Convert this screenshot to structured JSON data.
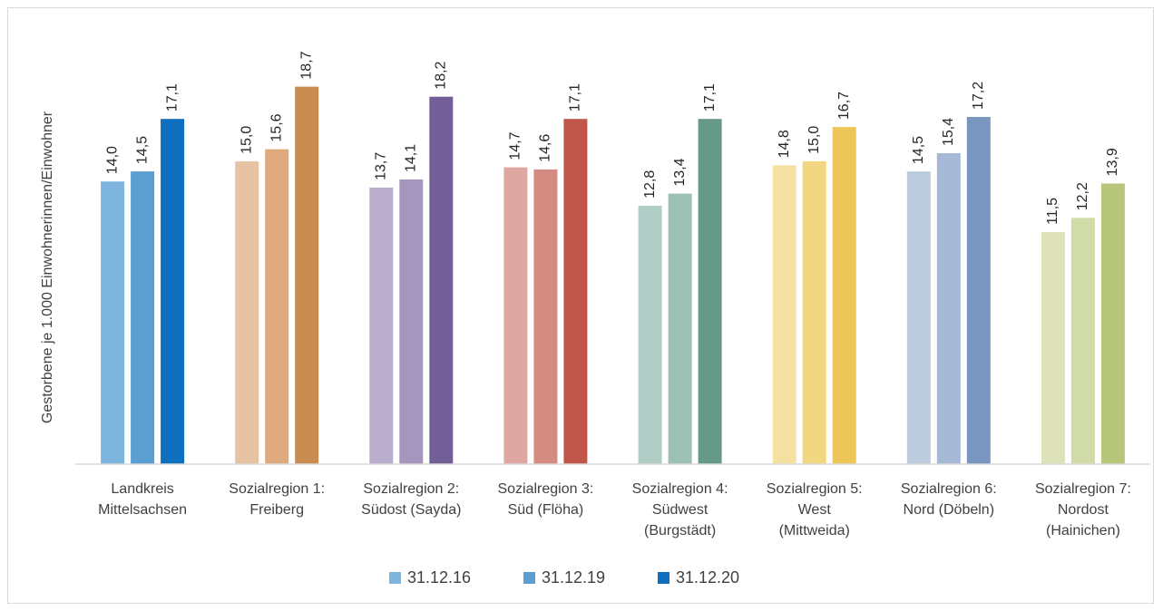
{
  "chart_data": {
    "type": "bar",
    "title": "",
    "xlabel": "",
    "ylabel": "Gestorbene je 1.000 Einwohnerinnen/Einwohner",
    "ylim": [
      0,
      20
    ],
    "grid": false,
    "legend_position": "bottom",
    "categories": [
      [
        "Landkreis",
        "Mittelsachsen"
      ],
      [
        "Sozialregion 1:",
        "Freiberg"
      ],
      [
        "Sozialregion 2:",
        "Südost (Sayda)"
      ],
      [
        "Sozialregion 3:",
        "Süd (Flöha)"
      ],
      [
        "Sozialregion 4:",
        "Südwest",
        "(Burgstädt)"
      ],
      [
        "Sozialregion 5:",
        "West",
        "(Mittweida)"
      ],
      [
        "Sozialregion 6:",
        "Nord (Döbeln)"
      ],
      [
        "Sozialregion 7:",
        "Nordost",
        "(Hainichen)"
      ]
    ],
    "series": [
      {
        "name": "31.12.16",
        "values": [
          14.0,
          15.0,
          13.7,
          14.7,
          12.8,
          14.8,
          14.5,
          11.5
        ]
      },
      {
        "name": "31.12.19",
        "values": [
          14.5,
          15.6,
          14.1,
          14.6,
          13.4,
          15.0,
          15.4,
          12.2
        ]
      },
      {
        "name": "31.12.20",
        "values": [
          17.1,
          18.7,
          18.2,
          17.1,
          17.1,
          16.7,
          17.2,
          13.9
        ]
      }
    ],
    "data_labels": [
      [
        "14,0",
        "15,0",
        "13,7",
        "14,7",
        "12,8",
        "14,8",
        "14,5",
        "11,5"
      ],
      [
        "14,5",
        "15,6",
        "14,1",
        "14,6",
        "13,4",
        "15,0",
        "15,4",
        "12,2"
      ],
      [
        "17,1",
        "18,7",
        "18,2",
        "17,1",
        "17,1",
        "16,7",
        "17,2",
        "13,9"
      ]
    ],
    "legend_colors": [
      "#7eb5de",
      "#5b9fd2",
      "#0f6fbf"
    ],
    "bar_colors": [
      [
        "#7eb5de",
        "#5b9fd2",
        "#0f6fbf"
      ],
      [
        "#e6c3a2",
        "#deaa7d",
        "#c98b50"
      ],
      [
        "#b9afcc",
        "#a596bd",
        "#735f98"
      ],
      [
        "#dfa7a2",
        "#d58b82",
        "#c0554a"
      ],
      [
        "#b2cdc6",
        "#9cc0b4",
        "#67998a"
      ],
      [
        "#f4e1a2",
        "#f2d681",
        "#ecc659"
      ],
      [
        "#bccbde",
        "#a5b9d6",
        "#7896c0"
      ],
      [
        "#dde2b8",
        "#d0dba7",
        "#b7c67a"
      ]
    ]
  }
}
